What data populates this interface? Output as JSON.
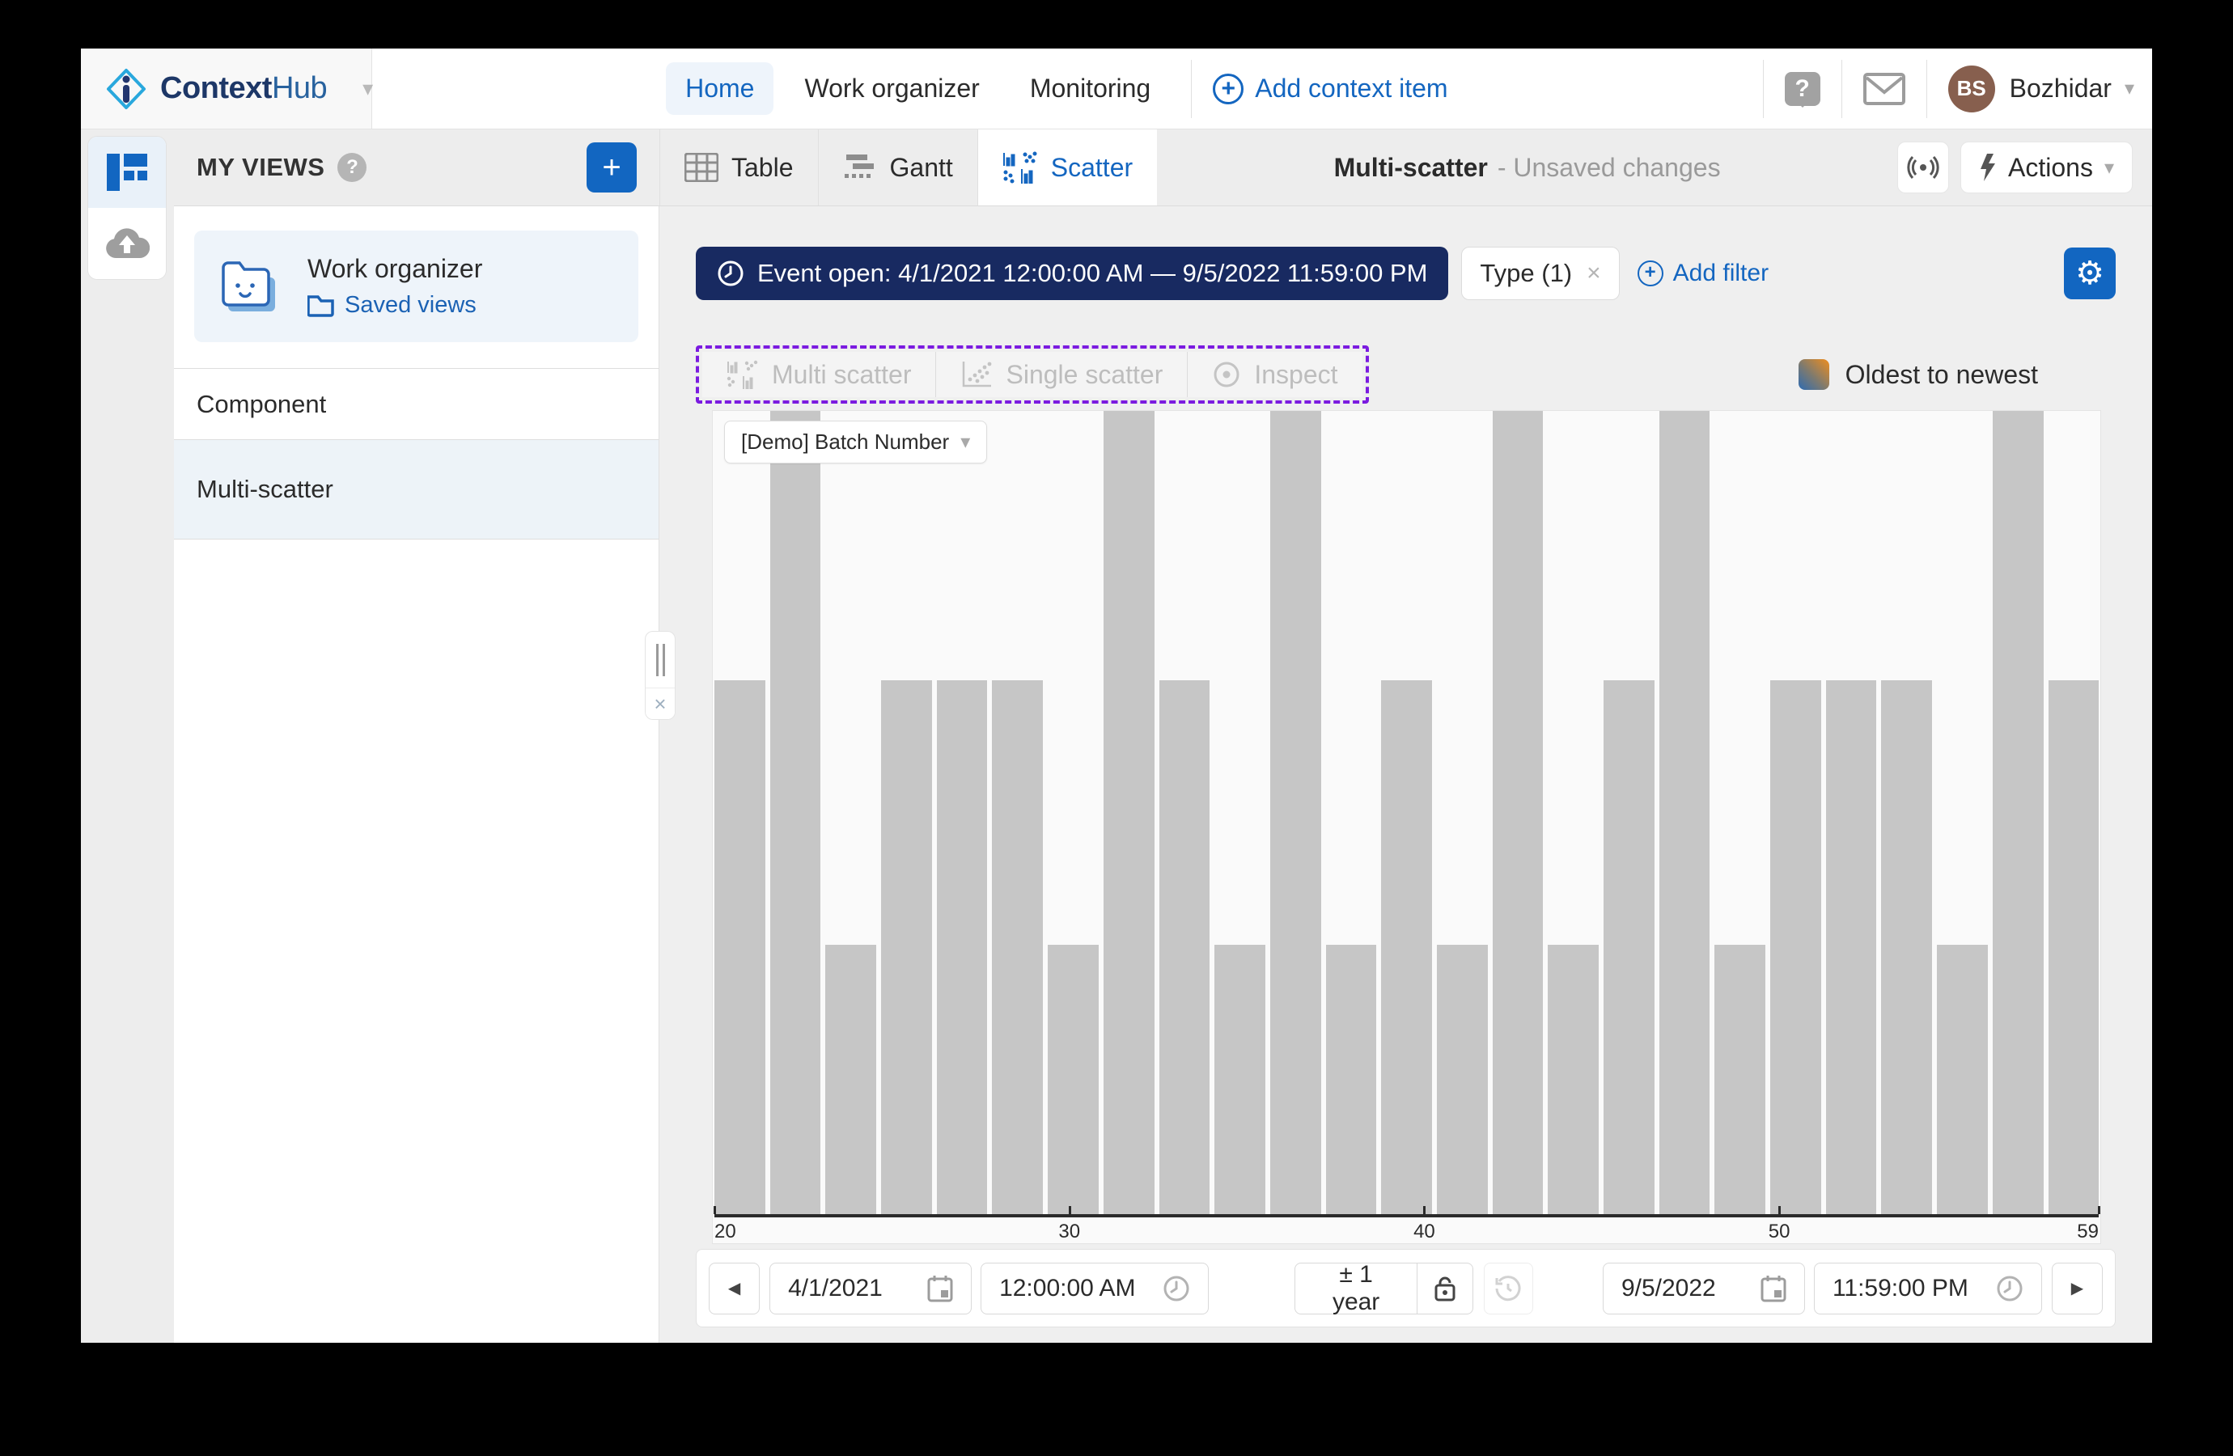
{
  "brand": {
    "name_bold": "Context",
    "name_light": "Hub"
  },
  "top_nav": {
    "links": [
      {
        "label": "Home",
        "active": true
      },
      {
        "label": "Work organizer",
        "active": false
      },
      {
        "label": "Monitoring",
        "active": false
      }
    ],
    "add_context_item": "Add context item",
    "user": {
      "initials": "BS",
      "name": "Bozhidar"
    }
  },
  "sidebar": {
    "header": "MY VIEWS",
    "card": {
      "title": "Work organizer",
      "subtitle": "Saved views"
    },
    "items": [
      {
        "label": "Component",
        "selected": false
      },
      {
        "label": "Multi-scatter",
        "selected": true
      }
    ]
  },
  "tabs": [
    {
      "label": "Table",
      "active": false
    },
    {
      "label": "Gantt",
      "active": false
    },
    {
      "label": "Scatter",
      "active": true
    }
  ],
  "view_header": {
    "title": "Multi-scatter",
    "status": "- Unsaved changes",
    "actions_label": "Actions"
  },
  "filters": {
    "event_pill": "Event open: 4/1/2021 12:00:00 AM — 9/5/2022 11:59:00 PM",
    "type_chip": "Type (1)",
    "add_filter": "Add filter"
  },
  "modes": [
    {
      "label": "Multi scatter"
    },
    {
      "label": "Single scatter"
    },
    {
      "label": "Inspect"
    }
  ],
  "sort": {
    "label": "Oldest to newest"
  },
  "chart": {
    "series_dropdown": "[Demo] Batch Number"
  },
  "chart_data": {
    "type": "bar",
    "title": "[Demo] Batch Number",
    "xlabel": "",
    "ylabel": "",
    "x_axis": {
      "min": 20,
      "max": 59,
      "ticks": [
        20,
        30,
        40,
        50,
        59
      ]
    },
    "grid": false,
    "legend": "none",
    "bin_count": 25,
    "values_relative": [
      0.665,
      1,
      0.335,
      0.665,
      0.665,
      0.665,
      0.335,
      1,
      0.665,
      0.335,
      1,
      0.335,
      0.665,
      0.335,
      1,
      0.335,
      0.665,
      1,
      0.335,
      0.665,
      0.665,
      0.665,
      0.335,
      1,
      0.665
    ],
    "counts_estimated": [
      2,
      3,
      1,
      2,
      2,
      2,
      1,
      3,
      2,
      1,
      3,
      1,
      2,
      1,
      3,
      1,
      2,
      3,
      1,
      2,
      2,
      2,
      1,
      3,
      2
    ],
    "bar_color": "#c6c6c6"
  },
  "timebar": {
    "start_date": "4/1/2021",
    "start_time": "12:00:00 AM",
    "range": "± 1 year",
    "end_date": "9/5/2022",
    "end_time": "11:59:00 PM"
  },
  "glyphs": {
    "chevron_down": "▾",
    "prev": "◀",
    "next": "▶",
    "close": "×",
    "gear": "⚙",
    "plus": "+",
    "help": "?",
    "grip_close": "×"
  },
  "colors": {
    "accent_blue": "#1266c1",
    "navy_pill": "#182a61",
    "purple_dashed": "#7b1be0",
    "bar_gray": "#c6c6c6",
    "selected_row": "#edf3f8",
    "avatar_brown": "#875f4e",
    "gradient_from": "#2e6bb1",
    "gradient_to": "#ef8e1e"
  }
}
